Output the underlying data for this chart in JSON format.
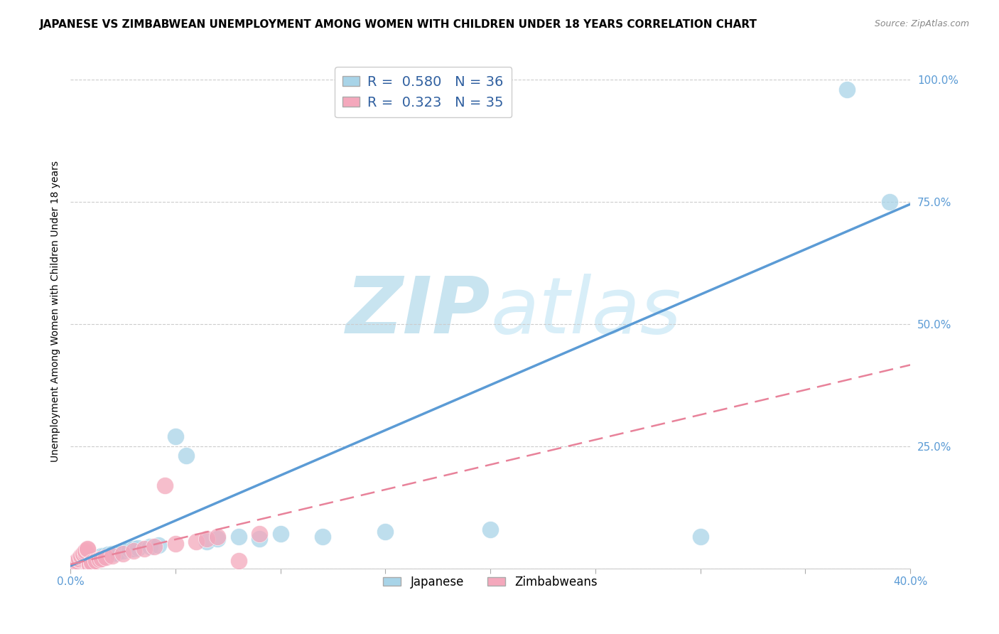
{
  "title": "JAPANESE VS ZIMBABWEAN UNEMPLOYMENT AMONG WOMEN WITH CHILDREN UNDER 18 YEARS CORRELATION CHART",
  "source": "Source: ZipAtlas.com",
  "ylabel": "Unemployment Among Women with Children Under 18 years",
  "xlim": [
    0.0,
    0.4
  ],
  "ylim": [
    0.0,
    1.05
  ],
  "xticks": [
    0.0,
    0.05,
    0.1,
    0.15,
    0.2,
    0.25,
    0.3,
    0.35,
    0.4
  ],
  "yticks": [
    0.0,
    0.25,
    0.5,
    0.75,
    1.0
  ],
  "japanese_x": [
    0.001,
    0.002,
    0.003,
    0.004,
    0.005,
    0.006,
    0.007,
    0.008,
    0.009,
    0.01,
    0.012,
    0.013,
    0.015,
    0.016,
    0.018,
    0.02,
    0.022,
    0.025,
    0.028,
    0.03,
    0.032,
    0.038,
    0.042,
    0.05,
    0.055,
    0.065,
    0.07,
    0.08,
    0.09,
    0.1,
    0.12,
    0.15,
    0.2,
    0.3,
    0.37,
    0.39
  ],
  "japanese_y": [
    0.005,
    0.005,
    0.008,
    0.01,
    0.01,
    0.012,
    0.012,
    0.015,
    0.015,
    0.018,
    0.02,
    0.022,
    0.025,
    0.025,
    0.028,
    0.03,
    0.032,
    0.035,
    0.038,
    0.04,
    0.042,
    0.045,
    0.048,
    0.27,
    0.23,
    0.055,
    0.06,
    0.065,
    0.06,
    0.07,
    0.065,
    0.075,
    0.08,
    0.065,
    0.98,
    0.75
  ],
  "zimbabwean_x": [
    0.001,
    0.002,
    0.002,
    0.003,
    0.003,
    0.004,
    0.004,
    0.005,
    0.005,
    0.006,
    0.006,
    0.007,
    0.007,
    0.008,
    0.008,
    0.009,
    0.009,
    0.01,
    0.01,
    0.012,
    0.014,
    0.015,
    0.017,
    0.02,
    0.025,
    0.03,
    0.035,
    0.04,
    0.045,
    0.05,
    0.06,
    0.065,
    0.07,
    0.08,
    0.09
  ],
  "zimbabwean_y": [
    0.005,
    0.008,
    0.01,
    0.012,
    0.015,
    0.018,
    0.02,
    0.022,
    0.025,
    0.028,
    0.03,
    0.032,
    0.035,
    0.038,
    0.04,
    0.005,
    0.008,
    0.01,
    0.012,
    0.015,
    0.018,
    0.02,
    0.022,
    0.025,
    0.03,
    0.035,
    0.04,
    0.045,
    0.17,
    0.05,
    0.055,
    0.06,
    0.065,
    0.015,
    0.07
  ],
  "japanese_R": 0.58,
  "japanese_N": 36,
  "zimbabwean_R": 0.323,
  "zimbabwean_N": 35,
  "japanese_color": "#A8D4E8",
  "zimbabwean_color": "#F4A8BC",
  "japanese_line_color": "#5B9BD5",
  "zimbabwean_line_color": "#E8829A",
  "watermark_zip_color": "#C8E4F0",
  "watermark_atlas_color": "#D8EEF8",
  "title_fontsize": 11,
  "axis_label_fontsize": 10,
  "tick_fontsize": 11,
  "legend_fontsize": 14
}
